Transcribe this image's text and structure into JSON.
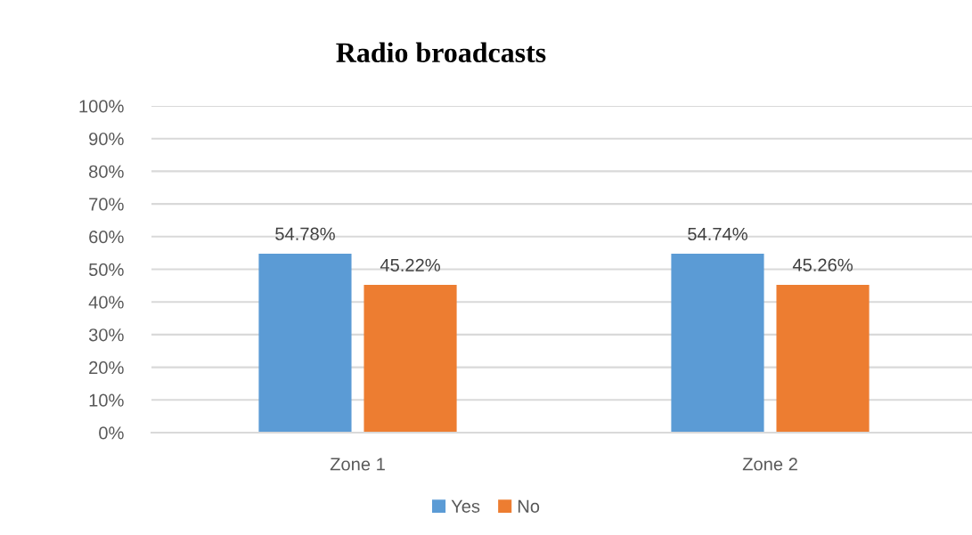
{
  "chart_data": {
    "type": "bar",
    "title": "Radio broadcasts",
    "categories": [
      "Zone 1",
      "Zone 2"
    ],
    "series": [
      {
        "name": "Yes",
        "color": "#5b9bd5",
        "values": [
          54.78,
          54.74
        ],
        "value_labels": [
          "54.78%",
          "54.74%"
        ]
      },
      {
        "name": "No",
        "color": "#ed7d31",
        "values": [
          45.22,
          45.26
        ],
        "value_labels": [
          "45.22%",
          "45.26%"
        ]
      }
    ],
    "ylim": [
      0,
      100
    ],
    "yticks": [
      {
        "value": 0,
        "label": "0%"
      },
      {
        "value": 10,
        "label": "10%"
      },
      {
        "value": 20,
        "label": "20%"
      },
      {
        "value": 30,
        "label": "30%"
      },
      {
        "value": 40,
        "label": "40%"
      },
      {
        "value": 50,
        "label": "50%"
      },
      {
        "value": 60,
        "label": "60%"
      },
      {
        "value": 70,
        "label": "70%"
      },
      {
        "value": 80,
        "label": "80%"
      },
      {
        "value": 90,
        "label": "90%"
      },
      {
        "value": 100,
        "label": "100%"
      }
    ],
    "grid": "y",
    "legend": "bottom"
  }
}
